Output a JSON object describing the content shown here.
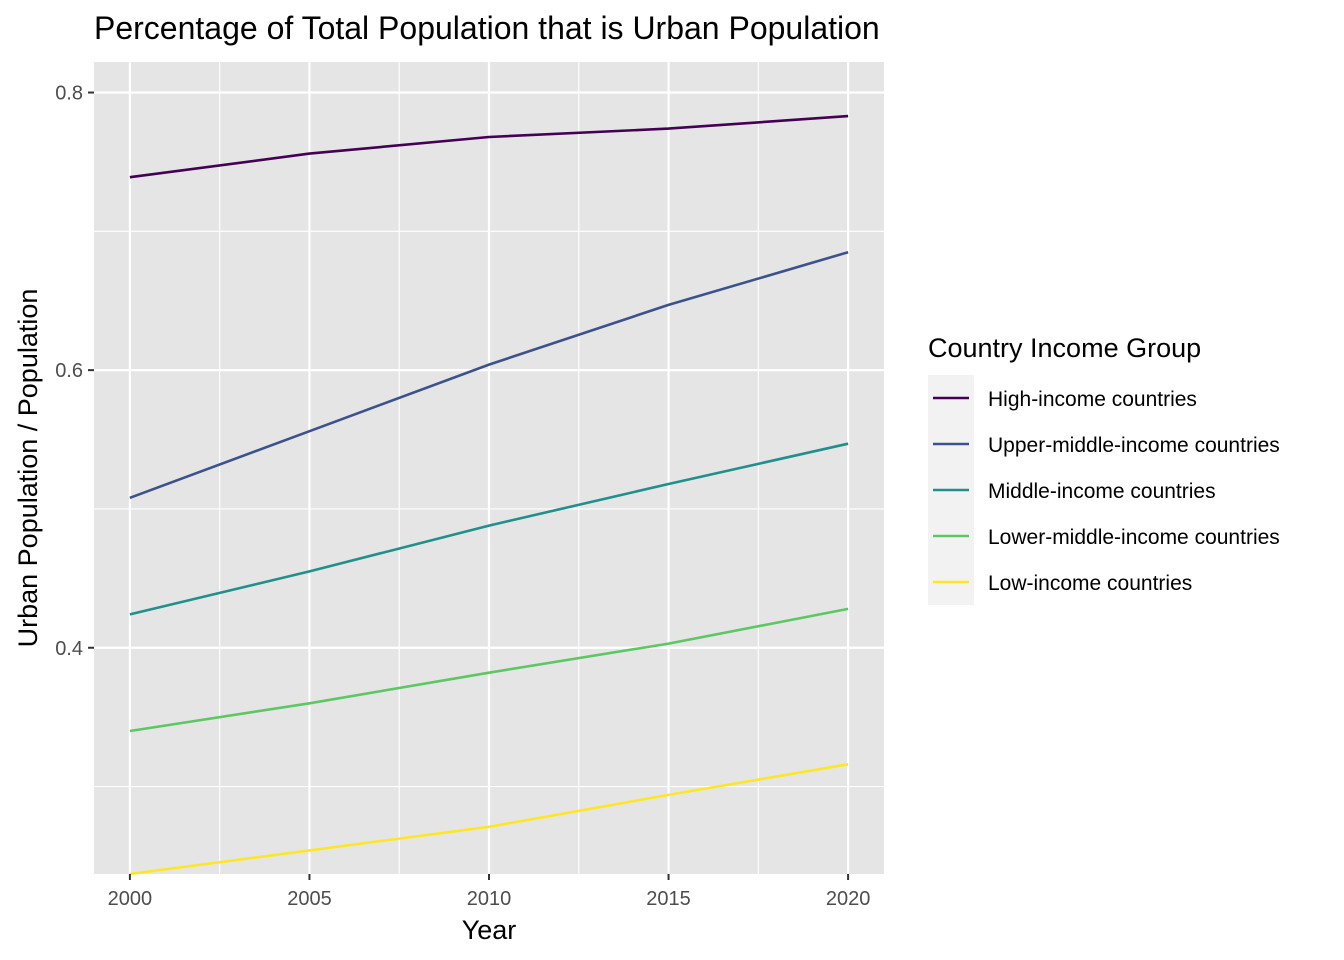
{
  "chart_data": {
    "type": "line",
    "title": "Percentage of Total Population that is Urban Population",
    "xlabel": "Year",
    "ylabel": "Urban Population / Population",
    "x": [
      2000,
      2005,
      2010,
      2015,
      2020
    ],
    "xlim": [
      1999,
      2021
    ],
    "ylim": [
      0.237,
      0.822
    ],
    "x_ticks": [
      2000,
      2005,
      2010,
      2015,
      2020
    ],
    "y_ticks": [
      0.4,
      0.6,
      0.8
    ],
    "x_tick_labels": [
      "2000",
      "2005",
      "2010",
      "2015",
      "2020"
    ],
    "y_tick_labels": [
      "0.4",
      "0.6",
      "0.8"
    ],
    "grid": true,
    "legend": {
      "title": "Country Income Group",
      "position": "right"
    },
    "series": [
      {
        "name": "High-income countries",
        "color": "#440154",
        "values": [
          0.739,
          0.756,
          0.768,
          0.774,
          0.783
        ]
      },
      {
        "name": "Upper-middle-income countries",
        "color": "#3b528b",
        "values": [
          0.508,
          0.556,
          0.604,
          0.647,
          0.685
        ]
      },
      {
        "name": "Middle-income countries",
        "color": "#21908c",
        "values": [
          0.424,
          0.455,
          0.488,
          0.518,
          0.547
        ]
      },
      {
        "name": "Lower-middle-income countries",
        "color": "#5dc863",
        "values": [
          0.34,
          0.36,
          0.382,
          0.403,
          0.428
        ]
      },
      {
        "name": "Low-income countries",
        "color": "#fde725",
        "values": [
          0.237,
          0.254,
          0.271,
          0.294,
          0.316
        ]
      }
    ]
  }
}
